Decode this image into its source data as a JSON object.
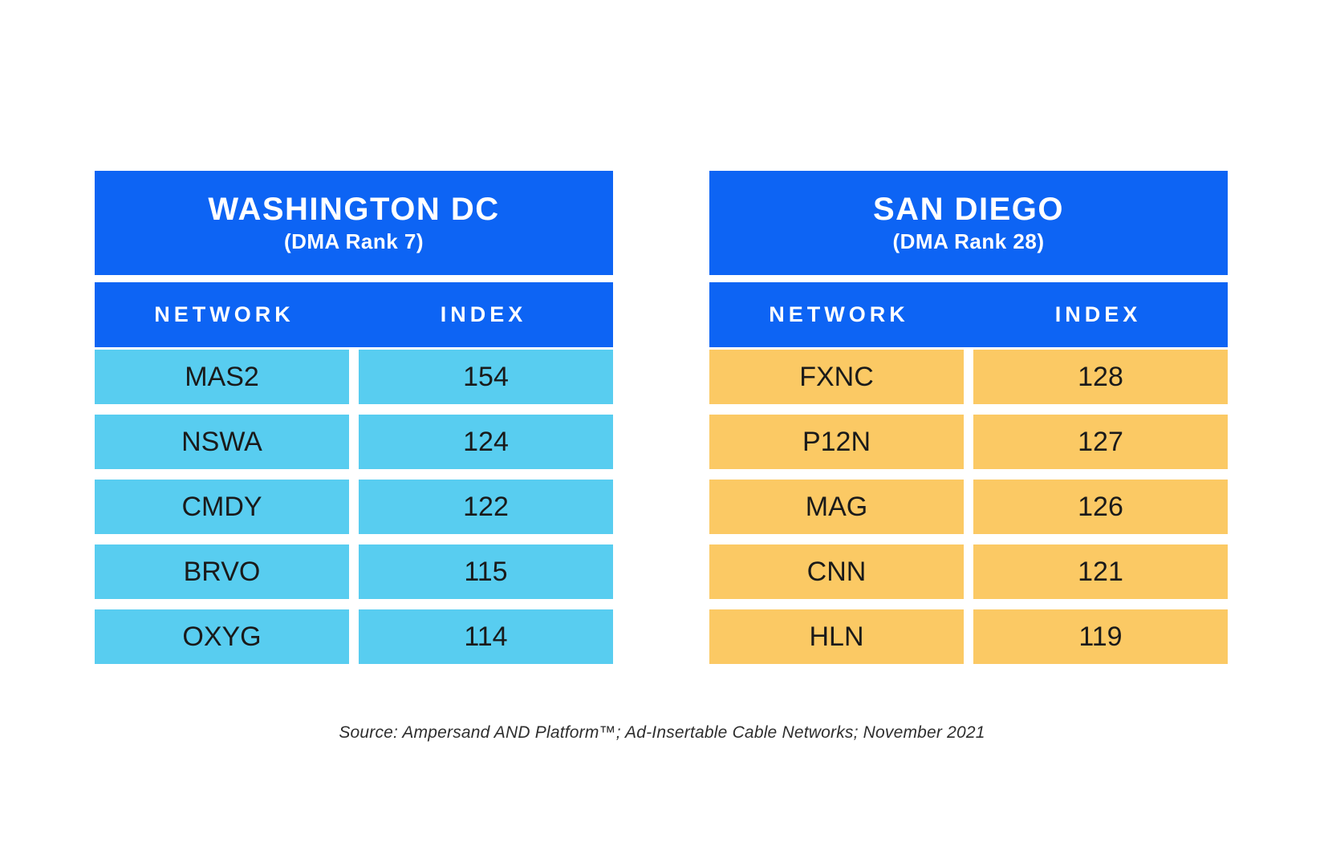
{
  "colors": {
    "header_blue": "#0D64F4",
    "row_cyan": "#58CDF0",
    "row_yellow": "#FBC964",
    "header_text": "#ffffff",
    "cell_text": "#1a1a1a",
    "source_text": "#2e2e2e"
  },
  "tables": [
    {
      "city": "WASHINGTON DC",
      "rank": "(DMA Rank 7)",
      "row_color": "#58CDF0",
      "columns": [
        "NETWORK",
        "INDEX"
      ],
      "rows": [
        {
          "network": "MAS2",
          "index": "154"
        },
        {
          "network": "NSWA",
          "index": "124"
        },
        {
          "network": "CMDY",
          "index": "122"
        },
        {
          "network": "BRVO",
          "index": "115"
        },
        {
          "network": "OXYG",
          "index": "114"
        }
      ]
    },
    {
      "city": "SAN DIEGO",
      "rank": "(DMA Rank 28)",
      "row_color": "#FBC964",
      "columns": [
        "NETWORK",
        "INDEX"
      ],
      "rows": [
        {
          "network": "FXNC",
          "index": "128"
        },
        {
          "network": "P12N",
          "index": "127"
        },
        {
          "network": "MAG",
          "index": "126"
        },
        {
          "network": "CNN",
          "index": "121"
        },
        {
          "network": "HLN",
          "index": "119"
        }
      ]
    }
  ],
  "source_note": "Source: Ampersand AND Platform™; Ad-Insertable Cable Networks; November 2021",
  "chart_data": [
    {
      "type": "table",
      "title": "WASHINGTON DC",
      "subtitle": "(DMA Rank 7)",
      "columns": [
        "NETWORK",
        "INDEX"
      ],
      "rows": [
        [
          "MAS2",
          154
        ],
        [
          "NSWA",
          124
        ],
        [
          "CMDY",
          122
        ],
        [
          "BRVO",
          115
        ],
        [
          "OXYG",
          114
        ]
      ]
    },
    {
      "type": "table",
      "title": "SAN DIEGO",
      "subtitle": "(DMA Rank 28)",
      "columns": [
        "NETWORK",
        "INDEX"
      ],
      "rows": [
        [
          "FXNC",
          128
        ],
        [
          "P12N",
          127
        ],
        [
          "MAG",
          126
        ],
        [
          "CNN",
          121
        ],
        [
          "HLN",
          119
        ]
      ]
    }
  ]
}
